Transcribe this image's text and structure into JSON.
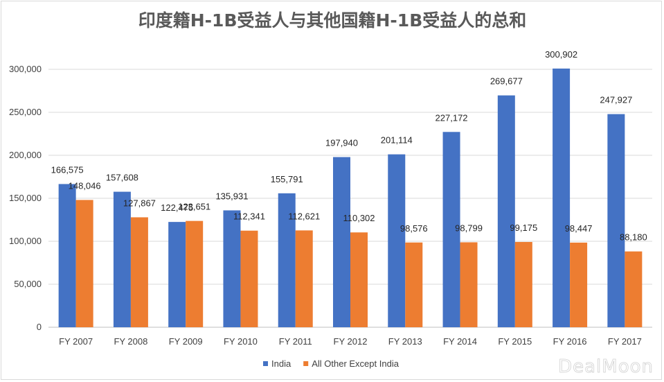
{
  "chart_data": {
    "type": "bar",
    "title": "印度籍H-1B受益人与其他国籍H-1B受益人的总和",
    "categories": [
      "FY 2007",
      "FY 2008",
      "FY 2009",
      "FY 2010",
      "FY 2011",
      "FY 2012",
      "FY 2013",
      "FY 2014",
      "FY 2015",
      "FY 2016",
      "FY 2017"
    ],
    "series": [
      {
        "name": "India",
        "color": "#4472c4",
        "values": [
          166575,
          157608,
          122475,
          135931,
          155791,
          197940,
          201114,
          227172,
          269677,
          300902,
          247927
        ]
      },
      {
        "name": "All Other Except India",
        "color": "#ed7d31",
        "values": [
          148046,
          127867,
          123651,
          112341,
          112621,
          110302,
          98576,
          98799,
          99175,
          98447,
          88180
        ]
      }
    ],
    "data_labels": [
      [
        "166,575",
        "157,608",
        "122,475",
        "135,931",
        "155,791",
        "197,940",
        "201,114",
        "227,172",
        "269,677",
        "300,902",
        "247,927"
      ],
      [
        "148,046",
        "127,867",
        "123,651",
        "112,341",
        "112,621",
        "110,302",
        "98,576",
        "98,799",
        "99,175",
        "98,447",
        "88,180"
      ]
    ],
    "xlabel": "",
    "ylabel": "",
    "ylim": [
      0,
      300000
    ],
    "yticks": [
      0,
      50000,
      100000,
      150000,
      200000,
      250000,
      300000
    ],
    "ytick_labels": [
      "0",
      "50,000",
      "100,000",
      "150,000",
      "200,000",
      "250,000",
      "300,000"
    ],
    "grid": true,
    "legend_position": "bottom-center"
  },
  "watermark": "DealMoon"
}
